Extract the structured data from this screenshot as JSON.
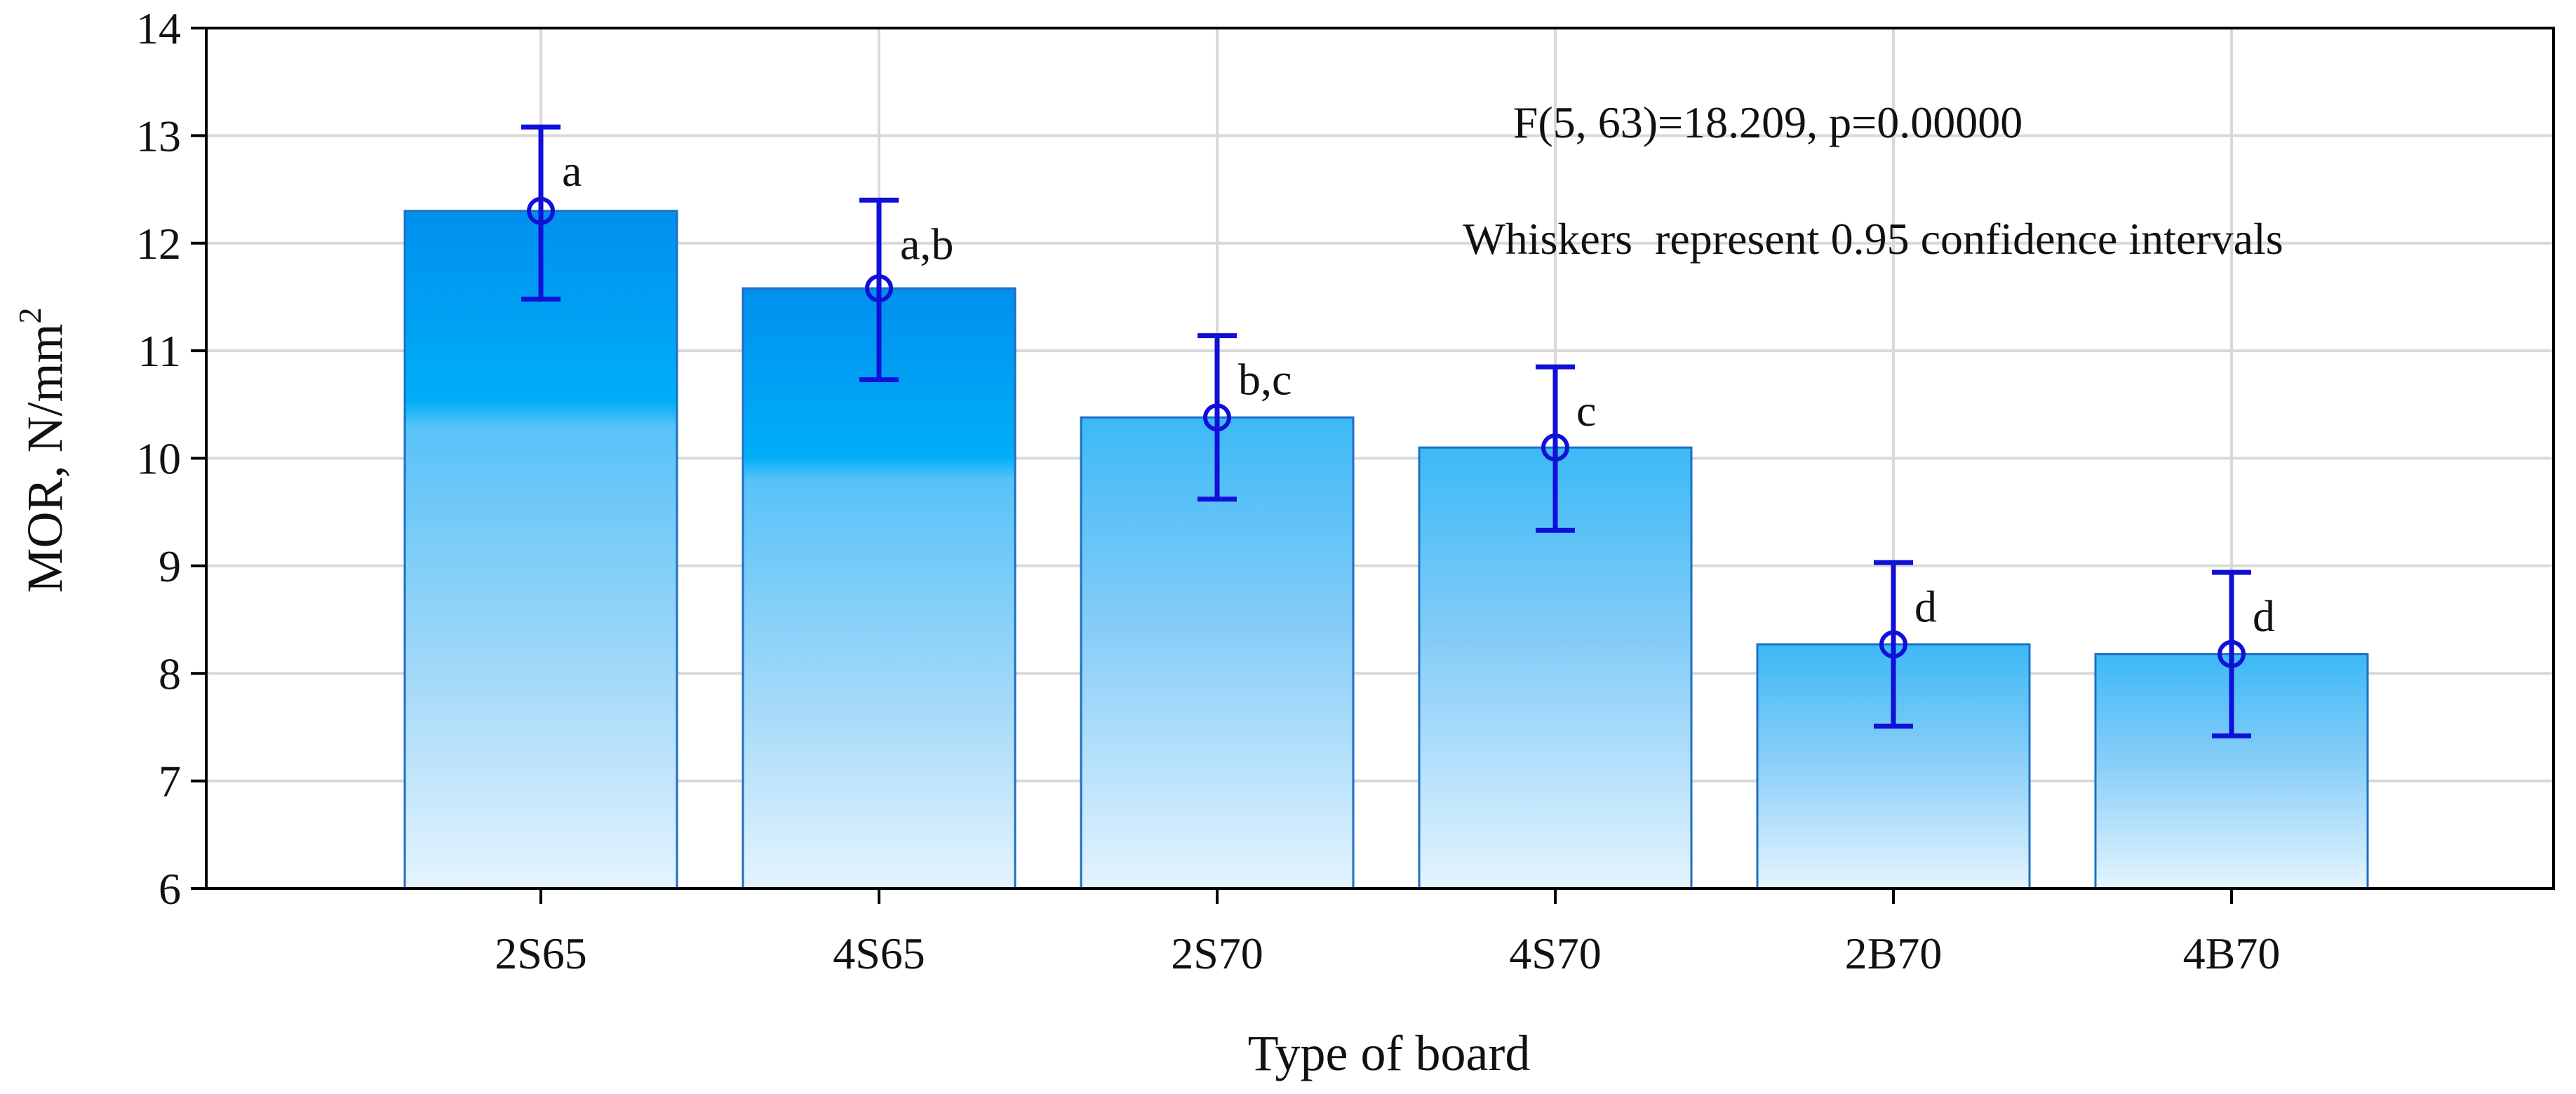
{
  "chart_data": {
    "type": "bar",
    "title": "",
    "xlabel": "Type of board",
    "ylabel": "MOR, N/mm",
    "ylabel_superscript": "2",
    "ylim": [
      6,
      14
    ],
    "yticks": [
      6,
      7,
      8,
      9,
      10,
      11,
      12,
      13,
      14
    ],
    "categories": [
      "2S65",
      "4S65",
      "2S70",
      "4S70",
      "2B70",
      "4B70"
    ],
    "values": [
      12.3,
      11.58,
      10.38,
      10.1,
      8.27,
      8.18
    ],
    "ci_low": [
      11.48,
      10.73,
      9.62,
      9.33,
      7.51,
      7.42
    ],
    "ci_high": [
      13.08,
      12.4,
      11.14,
      10.85,
      9.03,
      8.94
    ],
    "group_labels": [
      "a",
      "a,b",
      "b,c",
      "c",
      "d",
      "d"
    ],
    "annotations": [
      "F(5, 63)=18.209, p=0.00000",
      "Whiskers  represent 0.95 confidence intervals"
    ],
    "grid": true,
    "colors": {
      "bar_top_strong": "#0096f0",
      "bar_top_light": "#38b8f8",
      "bar_mid": "#86cdf8",
      "bar_bottom": "#dff1fd",
      "bar_edge": "#1f6fc4",
      "whisker": "#1010d8",
      "grid": "#d9d9d9",
      "axis": "#000000"
    }
  }
}
